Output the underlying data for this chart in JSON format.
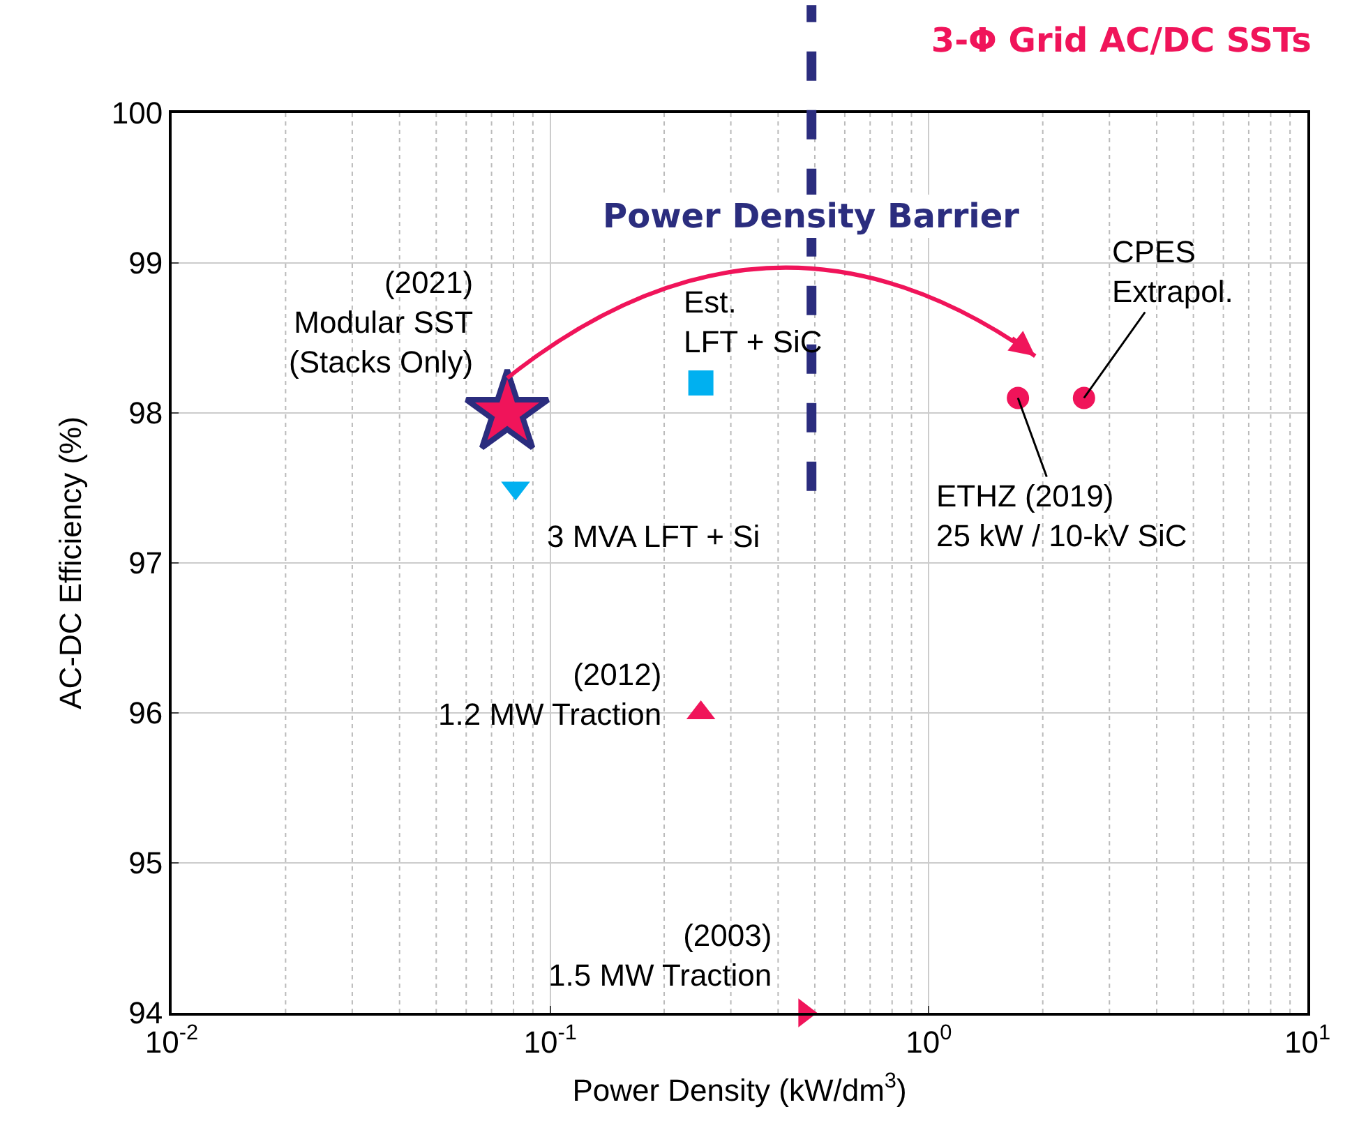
{
  "chart_data": {
    "type": "scatter",
    "title": "3-Φ Grid AC/DC SSTs",
    "xlabel": "Power Density (kW/dm$^{3}$)",
    "ylabel": "AC-DC Efficiency (%)",
    "log": "x",
    "grid": true,
    "xlim": [
      0.01,
      10
    ],
    "xticks": [
      {
        "value": 0.01,
        "label": "10$^{-2}$"
      },
      {
        "value": 0.1,
        "label": "10$^{-1}$"
      },
      {
        "value": 1,
        "label": "10$^{0}$"
      },
      {
        "value": 10,
        "label": "10$^{1}$"
      }
    ],
    "ylim": [
      94,
      100
    ],
    "yticks": [
      94,
      95,
      96,
      97,
      98,
      99,
      100
    ],
    "series": [
      {
        "x": [
          0.077
        ],
        "values": [
          98.0
        ],
        "color": "#f0145a",
        "marker": "star"
      },
      {
        "x": [
          0.081
        ],
        "values": [
          97.5
        ],
        "color": "#00b0f0",
        "marker": "triangle-down"
      },
      {
        "x": [
          0.25
        ],
        "values": [
          96.0
        ],
        "color": "#f0145a",
        "marker": "triangle"
      },
      {
        "x": [
          0.47
        ],
        "values": [
          94.0
        ],
        "color": "#f0145a",
        "marker": "triangle-right"
      },
      {
        "x": [
          0.25
        ],
        "values": [
          98.2
        ],
        "color": "#00b0f0",
        "marker": "square"
      },
      {
        "x": [
          1.72
        ],
        "values": [
          98.1
        ],
        "color": "#f0145a",
        "marker": "circle"
      },
      {
        "x": [
          2.57
        ],
        "values": [
          98.1
        ],
        "color": "#f0145a",
        "marker": "circle"
      }
    ],
    "annotations": [
      {
        "text": "(2021)\nModular SST\n(Stacks Only)",
        "x": 0.077,
        "y": 98.0
      },
      {
        "text": "3 MVA LFT + Si",
        "x": 0.081,
        "y": 97.5
      },
      {
        "text": "(2012)\n1.2 MW Traction",
        "x": 0.25,
        "y": 96.0
      },
      {
        "text": "(2003)\n1.5 MW Traction",
        "x": 0.47,
        "y": 94.0
      },
      {
        "text": "Est.\nLFT + SiC",
        "x": 0.25,
        "y": 98.2
      },
      {
        "text": "ETHZ (2019)\n25 kW / 10-kV SiC",
        "x": 1.72,
        "y": 98.1
      },
      {
        "text": "CPES\nExtrapol.",
        "x": 2.57,
        "y": 98.1
      }
    ],
    "ref_lines": [
      {
        "axis": "x",
        "value": 0.49,
        "label": "Power Density Barrier",
        "color": "#2b2d7e",
        "line_style": "dashed"
      }
    ]
  }
}
